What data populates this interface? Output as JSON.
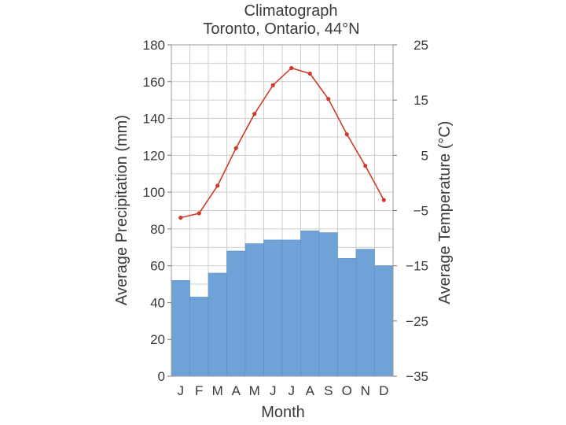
{
  "chart_data": {
    "type": "bar",
    "title": "Climatograph",
    "subtitle": "Toronto, Ontario, 44°N",
    "xlabel": "Month",
    "ylabel": "Average Precipitation (mm)",
    "y2label": "Average Temperature (°C)",
    "categories": [
      "J",
      "F",
      "M",
      "A",
      "M",
      "J",
      "J",
      "A",
      "S",
      "O",
      "N",
      "D"
    ],
    "ylim": [
      0,
      180
    ],
    "y2lim": [
      -35,
      25
    ],
    "yticks": [
      0,
      20,
      40,
      60,
      80,
      100,
      120,
      140,
      160,
      180
    ],
    "y2ticks": [
      "−35",
      "−25",
      "−15",
      "−5",
      "5",
      "15",
      "25"
    ],
    "y2tick_values": [
      -35,
      -25,
      -15,
      -5,
      5,
      15,
      25
    ],
    "grid": true,
    "series": [
      {
        "type": "bar",
        "axis": "left",
        "color": "#6fa3d8",
        "values": [
          52,
          43,
          56,
          68,
          72,
          74,
          74,
          79,
          78,
          64,
          69,
          60
        ]
      },
      {
        "type": "line",
        "axis": "right",
        "color": "#d13a2a",
        "values": [
          -6.3,
          -5.5,
          -0.5,
          6.3,
          12.5,
          17.7,
          20.8,
          19.8,
          15.2,
          8.8,
          3.1,
          -3.1
        ]
      }
    ]
  }
}
